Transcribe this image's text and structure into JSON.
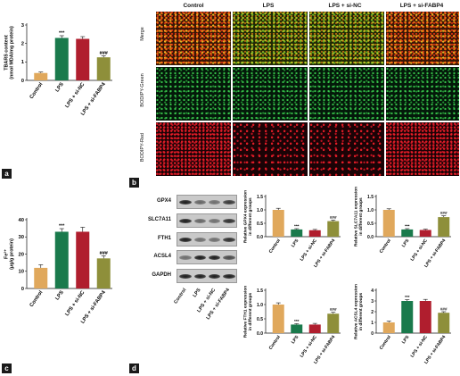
{
  "panels": {
    "a": "a",
    "b": "b",
    "c": "c",
    "d": "d"
  },
  "microscopy": {
    "columns": [
      "Control",
      "LPS",
      "LPS + si-NC",
      "LPS + si-FABP4"
    ],
    "rows": [
      "Merge",
      "BODIPY-Green",
      "BODIPY-Red"
    ]
  },
  "western_blot": {
    "proteins": [
      "GPX4",
      "SLC7A11",
      "FTH1",
      "ACSL4",
      "GAPDH"
    ],
    "lanes": [
      "Control",
      "LPS",
      "LPS + si-NC",
      "LPS + si-FABP4"
    ]
  },
  "colors": {
    "control": "#e0a85c",
    "lps": "#1a7a4c",
    "si_nc": "#b01e2e",
    "si_fabp4": "#8e8f3a"
  },
  "chart_data": [
    {
      "id": "tbars",
      "type": "bar",
      "ylabel": "TBARS content (nmol MDA/mg protein)",
      "categories": [
        "Control",
        "LPS",
        "LPS + si-NC",
        "LPS + si-FABP4"
      ],
      "values": [
        0.4,
        2.3,
        2.25,
        1.25
      ],
      "errors": [
        0.05,
        0.12,
        0.12,
        0.08
      ],
      "ylim": [
        0,
        3
      ],
      "yticks": [
        "0",
        "1",
        "2",
        "3"
      ],
      "annotations": [
        "",
        "***",
        "",
        "###"
      ]
    },
    {
      "id": "fe",
      "type": "bar",
      "ylabel": "Fe²⁺ (μg/g protein)",
      "categories": [
        "Control",
        "LPS",
        "LPS + si-NC",
        "LPS + si-FABP4"
      ],
      "values": [
        12,
        33,
        33,
        17.5
      ],
      "errors": [
        1.8,
        1.8,
        2.6,
        1.5
      ],
      "ylim": [
        0,
        40
      ],
      "yticks": [
        "0",
        "10",
        "20",
        "30",
        "40"
      ],
      "annotations": [
        "",
        "***",
        "",
        "###"
      ]
    },
    {
      "id": "gpx4",
      "type": "bar",
      "ylabel": "Relative GPX4 expression in different groups",
      "categories": [
        "Control",
        "LPS",
        "LPS + si-NC",
        "LPS + si-FABP4"
      ],
      "values": [
        1.0,
        0.27,
        0.24,
        0.58
      ],
      "errors": [
        0.06,
        0.03,
        0.03,
        0.04
      ],
      "ylim": [
        0,
        1.5
      ],
      "yticks": [
        "0.0",
        "0.5",
        "1.0",
        "1.5"
      ],
      "annotations": [
        "",
        "***",
        "",
        "###"
      ]
    },
    {
      "id": "slc7a11",
      "type": "bar",
      "ylabel": "Relative SLC7A11 expression in different groups",
      "categories": [
        "Control",
        "LPS",
        "LPS + si-NC",
        "LPS + si-FABP4"
      ],
      "values": [
        1.0,
        0.27,
        0.25,
        0.73
      ],
      "errors": [
        0.04,
        0.03,
        0.03,
        0.05
      ],
      "ylim": [
        0,
        1.5
      ],
      "yticks": [
        "0.0",
        "0.5",
        "1.0",
        "1.5"
      ],
      "annotations": [
        "",
        "***",
        "",
        "###"
      ]
    },
    {
      "id": "fth1",
      "type": "bar",
      "ylabel": "Relative FTH1 expression in different groups",
      "categories": [
        "Control",
        "LPS",
        "LPS + si-NC",
        "LPS + si-FABP4"
      ],
      "values": [
        1.0,
        0.3,
        0.3,
        0.68
      ],
      "errors": [
        0.06,
        0.03,
        0.04,
        0.05
      ],
      "ylim": [
        0,
        1.5
      ],
      "yticks": [
        "0.0",
        "0.5",
        "1.0",
        "1.5"
      ],
      "annotations": [
        "",
        "***",
        "",
        "###"
      ]
    },
    {
      "id": "acsl4",
      "type": "bar",
      "ylabel": "Relative ACSL4 expression in different groups",
      "categories": [
        "Control",
        "LPS",
        "LPS + si-NC",
        "LPS + si-FABP4"
      ],
      "values": [
        1.0,
        3.0,
        3.0,
        1.9
      ],
      "errors": [
        0.12,
        0.12,
        0.15,
        0.1
      ],
      "ylim": [
        0,
        4
      ],
      "yticks": [
        "0",
        "1",
        "2",
        "3",
        "4"
      ],
      "annotations": [
        "",
        "***",
        "",
        "###"
      ]
    }
  ]
}
